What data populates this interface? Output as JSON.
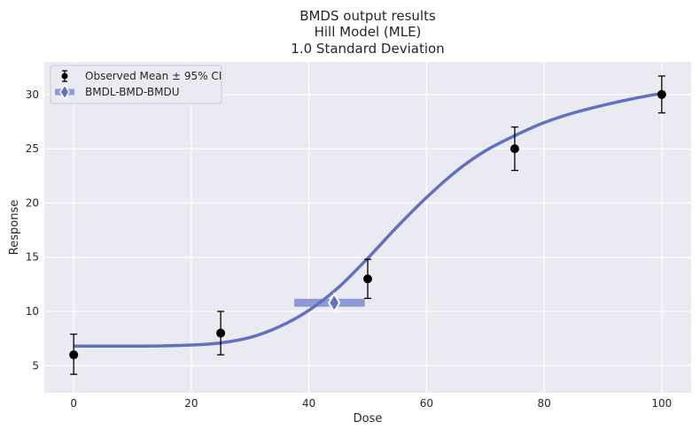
{
  "chart_data": {
    "type": "scatter",
    "title_lines": [
      "BMDS output results",
      "Hill Model (MLE)",
      "1.0 Standard Deviation"
    ],
    "xlabel": "Dose",
    "ylabel": "Response",
    "xlim": [
      -5,
      105
    ],
    "ylim": [
      2.5,
      33
    ],
    "x_ticks": [
      0,
      20,
      40,
      60,
      80,
      100
    ],
    "y_ticks": [
      5,
      10,
      15,
      20,
      25,
      30
    ],
    "grid": true,
    "legend_position": "top-left",
    "legend": [
      {
        "label": "Observed Mean ± 95% CI",
        "marker": "errorbar-point"
      },
      {
        "label": "BMDL-BMD-BMDU",
        "marker": "bmd-diamond"
      }
    ],
    "observed": [
      {
        "dose": 0,
        "mean": 6.0,
        "lower": 4.2,
        "upper": 7.9
      },
      {
        "dose": 25,
        "mean": 8.0,
        "lower": 6.0,
        "upper": 10.0
      },
      {
        "dose": 50,
        "mean": 13.0,
        "lower": 11.2,
        "upper": 14.8
      },
      {
        "dose": 75,
        "mean": 25.0,
        "lower": 23.0,
        "upper": 27.0
      },
      {
        "dose": 100,
        "mean": 30.0,
        "lower": 28.3,
        "upper": 31.7
      }
    ],
    "model_curve": {
      "name": "Hill Model",
      "x": [
        0,
        5,
        10,
        15,
        20,
        25,
        30,
        35,
        40,
        45,
        50,
        55,
        60,
        65,
        70,
        75,
        80,
        85,
        90,
        95,
        100
      ],
      "y": [
        6.8,
        6.8,
        6.8,
        6.82,
        6.9,
        7.1,
        7.6,
        8.6,
        10.1,
        12.2,
        14.9,
        17.8,
        20.5,
        22.9,
        24.8,
        26.2,
        27.4,
        28.3,
        29.0,
        29.6,
        30.1
      ]
    },
    "bmd": {
      "bmdl": 37.5,
      "bmd": 44.3,
      "bmdu": 49.5,
      "response": 10.8
    },
    "colors": {
      "background": "#eaeaf2",
      "grid": "#ffffff",
      "curve": "#6170c0",
      "bmd_band": "#8e9ad6",
      "observed": "#000000"
    }
  }
}
